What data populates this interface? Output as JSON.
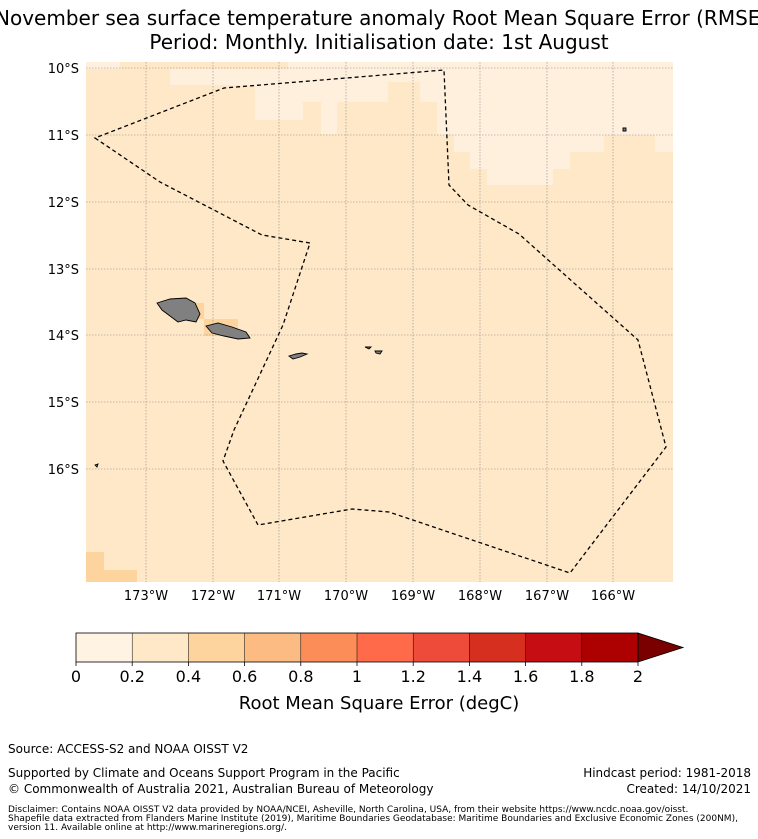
{
  "title": {
    "line1": "November sea surface temperature anomaly Root Mean Square Error (RMSE)",
    "line2": "Period: Monthly. Initialisation date: 1st August"
  },
  "map": {
    "lat_ticks": [
      "10°S",
      "11°S",
      "12°S",
      "13°S",
      "14°S",
      "15°S",
      "16°S"
    ],
    "lon_ticks": [
      "173°W",
      "172°W",
      "171°W",
      "170°W",
      "169°W",
      "168°W",
      "167°W",
      "166°W"
    ],
    "background_color": "#fee8c8",
    "low_color": "#fff0de",
    "mid_color": "#fdd49e",
    "land_color": "#808080",
    "boundary_style": "dashed"
  },
  "colorbar": {
    "ticks": [
      "0",
      "0.2",
      "0.4",
      "0.6",
      "0.8",
      "1",
      "1.2",
      "1.4",
      "1.6",
      "1.8",
      "2"
    ],
    "colors": [
      "#fff3e3",
      "#fee8c8",
      "#fdd49e",
      "#fdbb84",
      "#fc8d59",
      "#fe6a4a",
      "#ef4b3b",
      "#d62f1f",
      "#c70d14",
      "#ad0000"
    ],
    "extend_color": "#7a0000",
    "label": "Root Mean Square Error (degC)"
  },
  "footer": {
    "source": "Source: ACCESS-S2 and NOAA OISST V2",
    "support": "Supported by Climate and Oceans Support Program in the Pacific",
    "copyright": "© Commonwealth of Australia 2021, Australian Bureau of Meteorology",
    "hindcast": "Hindcast period: 1981-2018",
    "created": "Created: 14/10/2021",
    "disclaimer1": "Disclaimer: Contains NOAA OISST V2 data provided by NOAA/NCEI, Asheville, North Carolina, USA, from their website https://www.ncdc.noaa.gov/oisst.",
    "disclaimer2": "Shapefile data extracted from Flanders Marine Institute (2019), Maritime Boundaries Geodatabase: Maritime Boundaries and Exclusive Economic Zones (200NM),",
    "disclaimer3": "version 11. Available online at http://www.marineregions.org/."
  }
}
